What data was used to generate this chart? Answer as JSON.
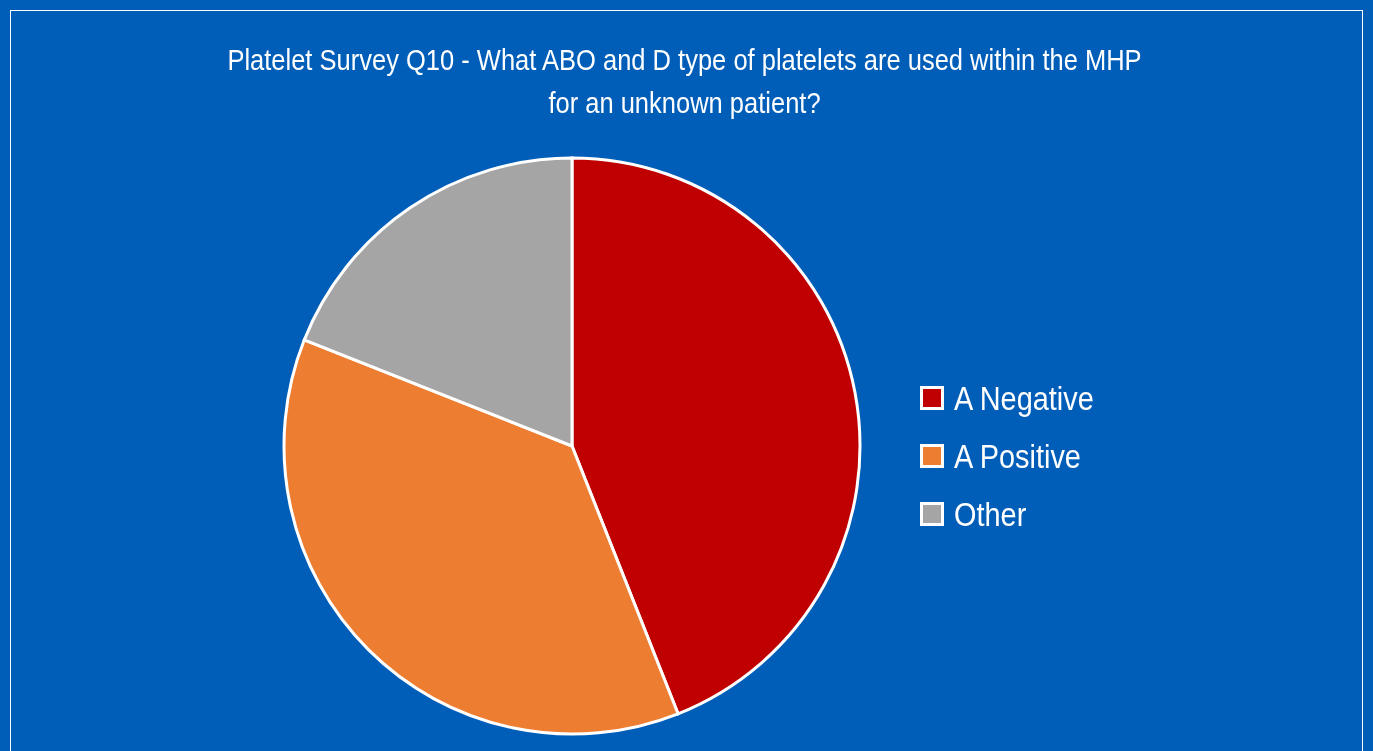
{
  "chart_data": {
    "type": "pie",
    "title": "Platelet Survey Q10 - What ABO and D type of platelets are used within the MHP\nfor an unknown patient?",
    "categories": [
      "A Negative",
      "A Positive",
      "Other"
    ],
    "values": [
      44,
      37,
      19
    ],
    "colors": [
      "#c00000",
      "#ed7d31",
      "#a5a5a5"
    ],
    "legend": "right"
  }
}
